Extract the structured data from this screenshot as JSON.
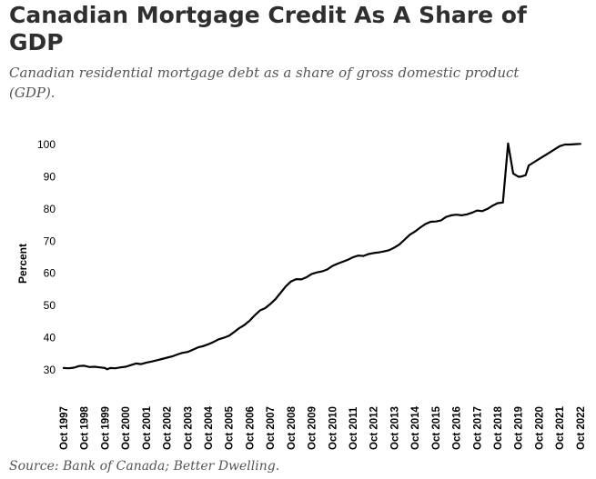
{
  "header": {
    "title": "Canadian Mortgage Credit As A Share of GDP",
    "subtitle": "Canadian residential mortgage debt as a share of gross domestic product (GDP)."
  },
  "footer": {
    "source": "Source: Bank of Canada; Better Dwelling."
  },
  "colors": {
    "line": "#000000",
    "title": "#2f2f2f",
    "subtitle": "#555555"
  },
  "chart_data": {
    "type": "line",
    "title": "Canadian Mortgage Credit As A Share of GDP",
    "ylabel": "Percent",
    "xlabel": "",
    "ylim": [
      25,
      103
    ],
    "xlim": [
      1997.75,
      2022.8
    ],
    "grid": false,
    "legend": "none",
    "yticks": [
      30,
      40,
      50,
      60,
      70,
      80,
      90,
      100
    ],
    "xtick_labels": [
      "Oct 1997",
      "Oct 1998",
      "Oct 1999",
      "Oct 2000",
      "Oct 2001",
      "Oct 2002",
      "Oct 2003",
      "Oct 2004",
      "Oct 2005",
      "Oct 2006",
      "Oct 2007",
      "Oct 2008",
      "Oct 2009",
      "Oct 2010",
      "Oct 2011",
      "Oct 2012",
      "Oct 2013",
      "Oct 2014",
      "Oct 2015",
      "Oct 2016",
      "Oct 2017",
      "Oct 2018",
      "Oct 2019",
      "Oct 2020",
      "Oct 2021",
      "Oct 2022"
    ],
    "series": [
      {
        "x": [
          1997.75,
          1998.0,
          1998.25,
          1998.5,
          1998.75,
          1999.0,
          1999.25,
          1999.5,
          1999.75,
          1999.85,
          2000.0,
          2000.25,
          2000.5,
          2000.75,
          2001.0,
          2001.25,
          2001.5,
          2001.75,
          2002.0,
          2002.25,
          2002.5,
          2002.75,
          2003.0,
          2003.25,
          2003.5,
          2003.75,
          2004.0,
          2004.25,
          2004.5,
          2004.75,
          2005.0,
          2005.25,
          2005.5,
          2005.75,
          2006.0,
          2006.25,
          2006.5,
          2006.75,
          2007.0,
          2007.25,
          2007.5,
          2007.75,
          2008.0,
          2008.25,
          2008.5,
          2008.75,
          2009.0,
          2009.25,
          2009.5,
          2009.75,
          2010.0,
          2010.25,
          2010.5,
          2010.75,
          2011.0,
          2011.25,
          2011.5,
          2011.75,
          2012.0,
          2012.25,
          2012.5,
          2012.75,
          2013.0,
          2013.25,
          2013.5,
          2013.75,
          2014.0,
          2014.25,
          2014.5,
          2014.75,
          2015.0,
          2015.25,
          2015.5,
          2015.75,
          2016.0,
          2016.25,
          2016.5,
          2016.75,
          2017.0,
          2017.25,
          2017.5,
          2017.75,
          2018.0,
          2018.25,
          2018.5,
          2018.75,
          2019.0,
          2019.25,
          2019.5,
          2019.75,
          2019.85,
          2020.0,
          2020.1,
          2020.25,
          2020.5,
          2020.75,
          2021.0,
          2021.25,
          2021.5,
          2021.75,
          2022.0,
          2022.25,
          2022.5,
          2022.75
        ],
        "values": [
          30.6,
          30.5,
          30.7,
          31.2,
          31.3,
          30.9,
          31.0,
          30.8,
          30.6,
          30.2,
          30.6,
          30.5,
          30.8,
          31.0,
          31.5,
          32.0,
          31.8,
          32.3,
          32.6,
          33.0,
          33.4,
          33.8,
          34.2,
          34.8,
          35.3,
          35.6,
          36.3,
          37.0,
          37.4,
          38.0,
          38.7,
          39.5,
          40.0,
          40.6,
          41.8,
          43.0,
          44.0,
          45.3,
          47.0,
          48.5,
          49.2,
          50.5,
          52.0,
          54.0,
          56.0,
          57.5,
          58.2,
          58.1,
          58.8,
          59.8,
          60.3,
          60.6,
          61.2,
          62.3,
          63.0,
          63.6,
          64.2,
          65.0,
          65.5,
          65.4,
          66.0,
          66.3,
          66.5,
          66.8,
          67.2,
          68.0,
          69.0,
          70.5,
          72.0,
          73.0,
          74.2,
          75.3,
          76.0,
          76.1,
          76.4,
          77.5,
          78.0,
          78.2,
          78.0,
          78.3,
          78.8,
          79.5,
          79.3,
          80.0,
          81.0,
          81.8,
          82.0,
          100.3,
          91.0,
          90.0,
          90.0,
          90.3,
          90.5,
          93.5,
          94.5,
          95.5,
          96.5,
          97.5,
          98.5,
          99.5,
          100.0,
          100.0,
          100.1,
          100.2
        ]
      }
    ]
  }
}
